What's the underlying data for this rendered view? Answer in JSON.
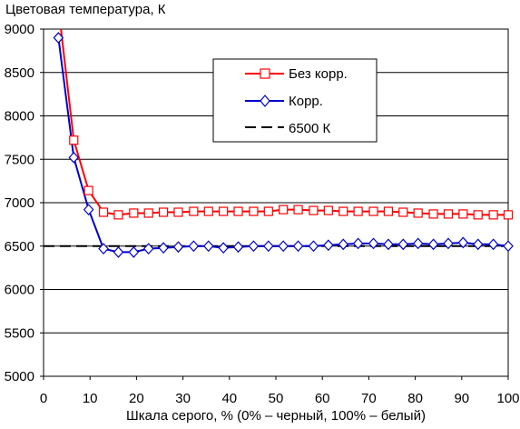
{
  "chart_data": {
    "type": "line",
    "title": "Цветовая температура, К",
    "xlabel": "Шкала серого, % (0% – черный, 100% – белый)",
    "ylabel": "",
    "xlim": [
      0,
      100
    ],
    "ylim": [
      5000,
      9000
    ],
    "x_ticks": [
      "0",
      "10",
      "20",
      "30",
      "40",
      "50",
      "60",
      "70",
      "80",
      "90",
      "100"
    ],
    "y_ticks": [
      "5000",
      "5500",
      "6000",
      "6500",
      "7000",
      "7500",
      "8000",
      "8500",
      "9000"
    ],
    "grid": "horizontal",
    "legend_position": "top-right",
    "series": [
      {
        "name": "Без корр.",
        "color": "#ff0000",
        "marker": "square",
        "style": "solid",
        "x": [
          3.2,
          6.5,
          9.7,
          12.9,
          16.1,
          19.4,
          22.6,
          25.8,
          29.0,
          32.3,
          35.5,
          38.7,
          41.9,
          45.2,
          48.4,
          51.6,
          54.8,
          58.1,
          61.3,
          64.5,
          67.7,
          71.0,
          74.2,
          77.4,
          80.6,
          83.9,
          87.1,
          90.3,
          93.5,
          96.8,
          100
        ],
        "y": [
          9250,
          7720,
          7140,
          6890,
          6860,
          6880,
          6880,
          6890,
          6890,
          6900,
          6900,
          6900,
          6900,
          6900,
          6900,
          6920,
          6920,
          6910,
          6910,
          6900,
          6900,
          6900,
          6900,
          6890,
          6880,
          6870,
          6870,
          6870,
          6860,
          6860,
          6860
        ]
      },
      {
        "name": "Корр.",
        "color": "#0000cc",
        "marker": "diamond",
        "style": "solid",
        "x": [
          3.2,
          6.5,
          9.7,
          12.9,
          16.1,
          19.4,
          22.6,
          25.8,
          29.0,
          32.3,
          35.5,
          38.7,
          41.9,
          45.2,
          48.4,
          51.6,
          54.8,
          58.1,
          61.3,
          64.5,
          67.7,
          71.0,
          74.2,
          77.4,
          80.6,
          83.9,
          87.1,
          90.3,
          93.5,
          96.8,
          100
        ],
        "y": [
          8900,
          7520,
          6920,
          6470,
          6430,
          6430,
          6470,
          6480,
          6490,
          6500,
          6500,
          6480,
          6490,
          6500,
          6500,
          6500,
          6500,
          6500,
          6510,
          6520,
          6530,
          6530,
          6520,
          6520,
          6530,
          6520,
          6530,
          6540,
          6520,
          6520,
          6500
        ]
      },
      {
        "name": "6500 К",
        "color": "#000000",
        "marker": "none",
        "style": "dashed",
        "x": [
          0,
          100
        ],
        "y": [
          6500,
          6500
        ]
      }
    ]
  }
}
